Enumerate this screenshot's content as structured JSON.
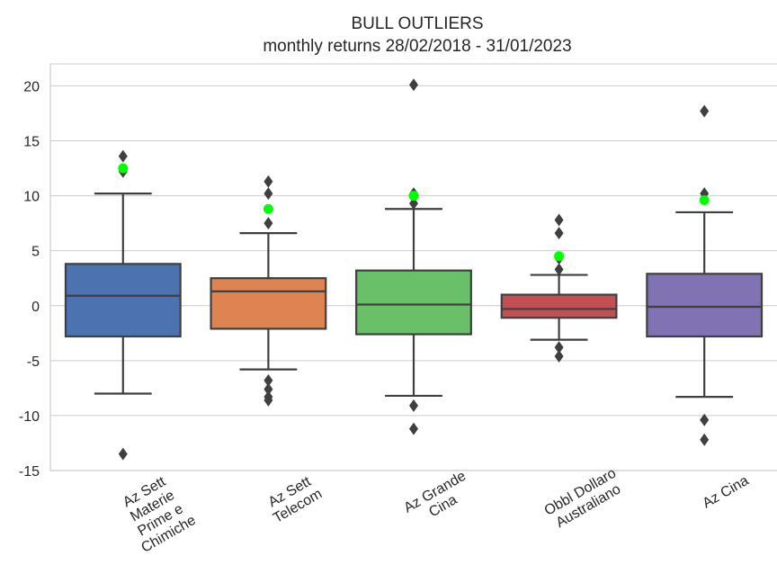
{
  "chart_data": {
    "type": "box",
    "title": "BULL OUTLIERS",
    "subtitle": "monthly returns 28/02/2018 - 31/01/2023",
    "xlabel": "",
    "ylabel": "",
    "ylim": [
      -15,
      22
    ],
    "yticks": [
      20,
      15,
      10,
      5,
      0,
      -5,
      -10,
      -15
    ],
    "grid": "horizontal",
    "categories": [
      "Az Sett Materie Prime e Chimiche",
      "Az Sett Telecom",
      "Az Grande Cina",
      "Obbl Dollaro Australiano",
      "Az Cina"
    ],
    "category_lines": [
      [
        "Az Sett",
        "Materie",
        "Prime e",
        "Chimiche"
      ],
      [
        "Az Sett",
        "Telecom"
      ],
      [
        "Az Grande",
        "Cina"
      ],
      [
        "Obbl Dollaro",
        "Australiano"
      ],
      [
        "Az Cina"
      ]
    ],
    "series": [
      {
        "color": "#4c72b0",
        "whisker_low": -8.0,
        "q1": -2.8,
        "median": 0.9,
        "q3": 3.8,
        "whisker_high": 10.2,
        "outliers": [
          13.6,
          12.2,
          -13.5
        ],
        "highlight": 12.5
      },
      {
        "color": "#dd8452",
        "whisker_low": -5.8,
        "q1": -2.1,
        "median": 1.3,
        "q3": 2.5,
        "whisker_high": 6.6,
        "outliers": [
          11.3,
          10.2,
          7.5,
          -6.8,
          -7.6,
          -8.3,
          -8.6
        ],
        "highlight": 8.8
      },
      {
        "color": "#6abf69",
        "whisker_low": -8.2,
        "q1": -2.6,
        "median": 0.1,
        "q3": 3.2,
        "whisker_high": 8.8,
        "outliers": [
          20.1,
          10.2,
          9.3,
          -9.1,
          -11.2
        ],
        "highlight": 10.0
      },
      {
        "color": "#c44e52",
        "whisker_low": -3.1,
        "q1": -1.1,
        "median": -0.3,
        "q3": 1.0,
        "whisker_high": 2.8,
        "outliers": [
          7.8,
          6.6,
          4.3,
          3.3,
          -3.8,
          -4.6
        ],
        "highlight": 4.5
      },
      {
        "color": "#8172b3",
        "whisker_low": -8.3,
        "q1": -2.8,
        "median": -0.1,
        "q3": 2.9,
        "whisker_high": 8.5,
        "outliers": [
          17.7,
          10.2,
          -10.4,
          -12.2
        ],
        "highlight": 9.6
      }
    ],
    "highlight_color": "#00ff00"
  }
}
